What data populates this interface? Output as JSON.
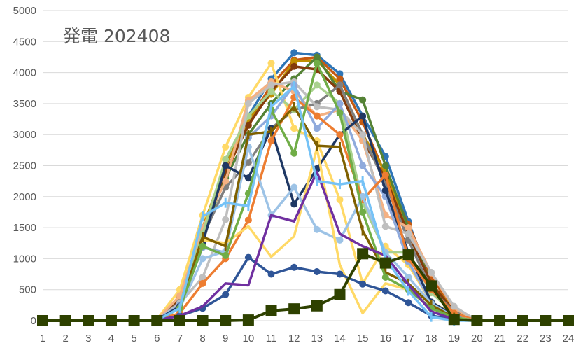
{
  "chart_data": {
    "type": "line",
    "title": "発電 202408",
    "xlabel": "",
    "ylabel": "",
    "x": [
      1,
      2,
      3,
      4,
      5,
      6,
      7,
      8,
      9,
      10,
      11,
      12,
      13,
      14,
      15,
      16,
      17,
      18,
      19,
      20,
      21,
      22,
      23,
      24
    ],
    "ylim": [
      0,
      5000
    ],
    "yticks": [
      0,
      500,
      1000,
      1500,
      2000,
      2500,
      3000,
      3500,
      4000,
      4500,
      5000
    ],
    "grid": true,
    "legend": "none",
    "series": [
      {
        "color": "#2e75b6",
        "marker": "circle",
        "values": [
          0,
          0,
          0,
          0,
          0,
          20,
          350,
          1450,
          2500,
          3300,
          3900,
          4320,
          4280,
          3980,
          3300,
          2650,
          1600,
          600,
          150,
          0,
          0,
          0,
          0,
          0
        ]
      },
      {
        "color": "#c55a11",
        "marker": "circle",
        "values": [
          0,
          0,
          0,
          0,
          0,
          10,
          300,
          1350,
          2350,
          3200,
          3800,
          4200,
          4250,
          3900,
          3200,
          2350,
          1550,
          700,
          180,
          0,
          0,
          0,
          0,
          0
        ]
      },
      {
        "color": "#bf9000",
        "marker": "circle",
        "values": [
          0,
          0,
          0,
          0,
          0,
          15,
          380,
          1500,
          2500,
          3250,
          3650,
          4180,
          4200,
          3800,
          3000,
          2400,
          1500,
          600,
          170,
          0,
          0,
          0,
          0,
          0
        ]
      },
      {
        "color": "#548235",
        "marker": "circle",
        "values": [
          0,
          0,
          0,
          0,
          0,
          10,
          300,
          1400,
          2300,
          3000,
          3500,
          3900,
          4250,
          3700,
          3560,
          2500,
          1500,
          600,
          150,
          0,
          0,
          0,
          0,
          0
        ]
      },
      {
        "color": "#843c0c",
        "marker": "circle",
        "values": [
          0,
          0,
          0,
          0,
          0,
          10,
          330,
          1450,
          2400,
          3150,
          3700,
          4100,
          4050,
          3700,
          2900,
          2300,
          1400,
          600,
          150,
          0,
          0,
          0,
          0,
          0
        ]
      },
      {
        "color": "#7f7f7f",
        "marker": "circle",
        "values": [
          0,
          0,
          0,
          0,
          0,
          10,
          300,
          1350,
          2150,
          2550,
          3100,
          3400,
          3500,
          3800,
          3000,
          2200,
          1300,
          500,
          150,
          0,
          0,
          0,
          0,
          0
        ]
      },
      {
        "color": "#ffd966",
        "marker": "circle",
        "values": [
          0,
          0,
          0,
          0,
          0,
          20,
          500,
          1700,
          2800,
          3600,
          4150,
          3100,
          2900,
          1950,
          600,
          1200,
          900,
          300,
          100,
          0,
          0,
          0,
          0,
          0
        ]
      },
      {
        "color": "#f4b183",
        "marker": "circle",
        "values": [
          0,
          0,
          0,
          0,
          0,
          15,
          400,
          1500,
          2250,
          3550,
          3850,
          3700,
          3300,
          3400,
          2900,
          1700,
          1500,
          770,
          200,
          0,
          0,
          0,
          0,
          0
        ]
      },
      {
        "color": "#a9d18e",
        "marker": "circle",
        "values": [
          0,
          0,
          0,
          0,
          0,
          10,
          260,
          1400,
          2600,
          3300,
          3700,
          3400,
          3800,
          3500,
          1900,
          1100,
          1100,
          450,
          120,
          0,
          0,
          0,
          0,
          0
        ]
      },
      {
        "color": "#bfbfbf",
        "marker": "circle",
        "values": [
          0,
          0,
          0,
          0,
          0,
          15,
          280,
          700,
          1630,
          3500,
          3800,
          3850,
          3450,
          3400,
          3000,
          1520,
          1400,
          780,
          230,
          0,
          0,
          0,
          0,
          0
        ]
      },
      {
        "color": "#8faadc",
        "marker": "circle",
        "values": [
          0,
          0,
          0,
          0,
          0,
          10,
          250,
          1180,
          1100,
          2950,
          3300,
          3800,
          3100,
          3500,
          2500,
          2000,
          950,
          300,
          80,
          0,
          0,
          0,
          0,
          0
        ]
      },
      {
        "color": "#1f3864",
        "marker": "circle",
        "values": [
          0,
          0,
          0,
          0,
          0,
          10,
          230,
          1250,
          2500,
          2300,
          3100,
          1880,
          2450,
          3000,
          3300,
          2100,
          1100,
          300,
          80,
          0,
          0,
          0,
          0,
          0
        ]
      },
      {
        "color": "#ed7d31",
        "marker": "circle",
        "values": [
          0,
          0,
          0,
          0,
          0,
          5,
          120,
          600,
          1000,
          1620,
          2900,
          3600,
          3300,
          3000,
          1950,
          2350,
          1000,
          500,
          120,
          0,
          0,
          0,
          0,
          0
        ]
      },
      {
        "color": "#9dc3e6",
        "marker": "circle",
        "values": [
          0,
          0,
          0,
          0,
          0,
          5,
          200,
          1000,
          1120,
          2800,
          1700,
          2150,
          1470,
          1300,
          2000,
          1100,
          700,
          280,
          60,
          0,
          0,
          0,
          0,
          0
        ]
      },
      {
        "color": "#ffd966",
        "marker": "none",
        "values": [
          0,
          0,
          0,
          0,
          0,
          5,
          200,
          1300,
          1250,
          1520,
          1030,
          1360,
          2780,
          900,
          120,
          600,
          500,
          200,
          50,
          0,
          0,
          0,
          0,
          0
        ]
      },
      {
        "color": "#7f6000",
        "marker": "dash",
        "values": [
          0,
          0,
          0,
          0,
          0,
          5,
          200,
          1350,
          1200,
          3000,
          3050,
          3450,
          2820,
          2800,
          1450,
          780,
          600,
          250,
          50,
          0,
          0,
          0,
          0,
          0
        ]
      },
      {
        "color": "#70ad47",
        "marker": "circle",
        "values": [
          0,
          0,
          0,
          0,
          0,
          5,
          200,
          1200,
          1050,
          2050,
          3400,
          2700,
          4150,
          3350,
          1750,
          700,
          500,
          200,
          50,
          0,
          0,
          0,
          0,
          0
        ]
      },
      {
        "color": "#2f5597",
        "marker": "circle",
        "values": [
          0,
          0,
          0,
          0,
          0,
          5,
          80,
          200,
          420,
          1020,
          750,
          860,
          790,
          750,
          590,
          480,
          290,
          80,
          20,
          0,
          0,
          0,
          0,
          0
        ]
      },
      {
        "color": "#7030a0",
        "marker": "none",
        "values": [
          0,
          0,
          0,
          0,
          0,
          5,
          80,
          230,
          600,
          570,
          1700,
          1600,
          2400,
          1400,
          1200,
          1050,
          580,
          150,
          20,
          0,
          0,
          0,
          0,
          0
        ]
      },
      {
        "color": "#75c2f6",
        "marker": "dash",
        "values": [
          0,
          0,
          0,
          0,
          0,
          10,
          200,
          1680,
          1900,
          1850,
          3450,
          3780,
          2250,
          2200,
          2250,
          1000,
          480,
          60,
          0,
          0,
          0,
          0,
          0,
          0
        ]
      },
      {
        "color": "#2e4100",
        "marker": "square",
        "values": [
          0,
          0,
          0,
          0,
          0,
          0,
          0,
          0,
          0,
          10,
          160,
          190,
          240,
          420,
          1080,
          930,
          1060,
          560,
          20,
          0,
          0,
          0,
          0,
          0
        ]
      }
    ]
  }
}
